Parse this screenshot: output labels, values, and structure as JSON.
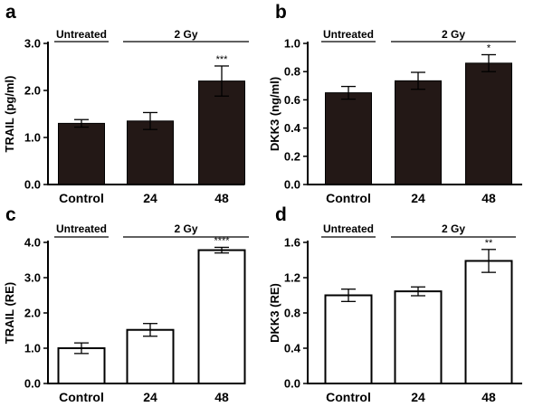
{
  "chart_data": [
    {
      "panel": "a",
      "type": "bar",
      "categories": [
        "Control",
        "24",
        "48"
      ],
      "values": [
        1.3,
        1.35,
        2.2
      ],
      "errors": [
        0.08,
        0.18,
        0.32
      ],
      "significance": [
        "",
        "",
        "***"
      ],
      "ylabel": "TRAIL (pg/ml)",
      "ylim": [
        0,
        3
      ],
      "yticks": [
        "0.0",
        "1.0",
        "2.0",
        "3.0"
      ],
      "groups": [
        {
          "label": "Untreated"
        },
        {
          "label": "2 Gy"
        }
      ],
      "bar_color": "#231816"
    },
    {
      "panel": "b",
      "type": "bar",
      "categories": [
        "Control",
        "24",
        "48"
      ],
      "values": [
        0.65,
        0.735,
        0.86
      ],
      "errors": [
        0.045,
        0.06,
        0.06
      ],
      "significance": [
        "",
        "",
        "*"
      ],
      "ylabel": "DKK3   (ng/ml)",
      "ylim": [
        0,
        1
      ],
      "yticks": [
        "0.0",
        "0.2",
        "0.4",
        "0.6",
        "0.8",
        "1.0"
      ],
      "groups": [
        {
          "label": "Untreated"
        },
        {
          "label": "2 Gy"
        }
      ],
      "bar_color": "#231816"
    },
    {
      "panel": "c",
      "type": "bar",
      "categories": [
        "Control",
        "24",
        "48"
      ],
      "values": [
        1.0,
        1.52,
        3.78
      ],
      "errors": [
        0.15,
        0.18,
        0.08
      ],
      "significance": [
        "",
        "",
        "****"
      ],
      "ylabel": "TRAIL (RE)",
      "ylim": [
        0,
        4
      ],
      "yticks": [
        "0.0",
        "1.0",
        "2.0",
        "3.0",
        "4.0"
      ],
      "groups": [
        {
          "label": "Untreated"
        },
        {
          "label": "2 Gy"
        }
      ],
      "bar_color": "#ffffff"
    },
    {
      "panel": "d",
      "type": "bar",
      "categories": [
        "Control",
        "24",
        "48"
      ],
      "values": [
        1.0,
        1.045,
        1.39
      ],
      "errors": [
        0.07,
        0.05,
        0.13
      ],
      "significance": [
        "",
        "",
        "**"
      ],
      "ylabel": "DKK3 (RE)",
      "ylim": [
        0,
        1.6
      ],
      "yticks": [
        "0.0",
        "0.4",
        "0.8",
        "1.2",
        "1.6"
      ],
      "groups": [
        {
          "label": "Untreated"
        },
        {
          "label": "2 Gy"
        }
      ],
      "bar_color": "#ffffff"
    }
  ]
}
